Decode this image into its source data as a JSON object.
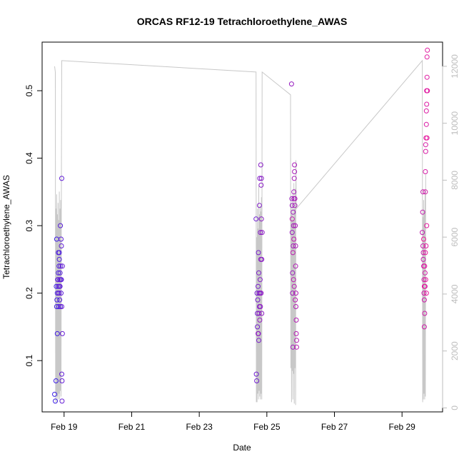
{
  "chart_data": {
    "type": "scatter",
    "title": "ORCAS RF12-19 Tetrachloroethylene_AWAS",
    "xlabel": "Date",
    "ylabel": "Tetrachloroethylene_AWAS",
    "x_ticks": [
      {
        "day": 19,
        "label": "Feb 19"
      },
      {
        "day": 21,
        "label": "Feb 21"
      },
      {
        "day": 23,
        "label": "Feb 23"
      },
      {
        "day": 25,
        "label": "Feb 25"
      },
      {
        "day": 27,
        "label": "Feb 27"
      },
      {
        "day": 29,
        "label": "Feb 29"
      }
    ],
    "xlim": [
      18.35,
      30.2
    ],
    "ylim": [
      0.024,
      0.572
    ],
    "y_ticks": [
      "0.1",
      "0.2",
      "0.3",
      "0.4",
      "0.5"
    ],
    "y2lim": [
      -140,
      12850
    ],
    "y2_ticks": [
      "0",
      "2000",
      "4000",
      "6000",
      "8000",
      "10000",
      "12000"
    ],
    "grid": false,
    "colors": {
      "start": "#3a1ee6",
      "end": "#ee1a9a",
      "altitude": "#c8c8c8"
    },
    "series": [
      {
        "points": [
          [
            18.72,
            0.05
          ],
          [
            18.74,
            0.04
          ],
          [
            18.76,
            0.07
          ],
          [
            18.78,
            0.28
          ],
          [
            18.77,
            0.21
          ],
          [
            18.78,
            0.18
          ],
          [
            18.79,
            0.19
          ],
          [
            18.8,
            0.2
          ],
          [
            18.8,
            0.14
          ],
          [
            18.81,
            0.22
          ],
          [
            18.82,
            0.21
          ],
          [
            18.83,
            0.23
          ],
          [
            18.83,
            0.26
          ],
          [
            18.84,
            0.18
          ],
          [
            18.85,
            0.2
          ],
          [
            18.85,
            0.24
          ],
          [
            18.86,
            0.25
          ],
          [
            18.86,
            0.26
          ],
          [
            18.87,
            0.19
          ],
          [
            18.87,
            0.22
          ],
          [
            18.88,
            0.21
          ],
          [
            18.88,
            0.23
          ],
          [
            18.89,
            0.18
          ],
          [
            18.89,
            0.3
          ],
          [
            18.9,
            0.22
          ],
          [
            18.9,
            0.24
          ],
          [
            18.91,
            0.28
          ],
          [
            18.91,
            0.2
          ],
          [
            18.92,
            0.22
          ],
          [
            18.92,
            0.27
          ],
          [
            18.93,
            0.37
          ],
          [
            18.93,
            0.08
          ],
          [
            18.94,
            0.07
          ],
          [
            18.94,
            0.04
          ],
          [
            18.95,
            0.14
          ],
          [
            18.95,
            0.24
          ],
          [
            18.93,
            0.18
          ],
          [
            18.86,
            0.21
          ],
          [
            18.84,
            0.2
          ],
          [
            18.82,
            0.22
          ],
          [
            24.68,
            0.31
          ],
          [
            24.69,
            0.08
          ],
          [
            24.7,
            0.07
          ],
          [
            24.71,
            0.2
          ],
          [
            24.72,
            0.17
          ],
          [
            24.72,
            0.15
          ],
          [
            24.73,
            0.19
          ],
          [
            24.74,
            0.21
          ],
          [
            24.75,
            0.26
          ],
          [
            24.75,
            0.14
          ],
          [
            24.76,
            0.13
          ],
          [
            24.76,
            0.23
          ],
          [
            24.77,
            0.2
          ],
          [
            24.78,
            0.18
          ],
          [
            24.78,
            0.33
          ],
          [
            24.79,
            0.37
          ],
          [
            24.8,
            0.22
          ],
          [
            24.8,
            0.2
          ],
          [
            24.81,
            0.29
          ],
          [
            24.82,
            0.25
          ],
          [
            24.82,
            0.39
          ],
          [
            24.83,
            0.36
          ],
          [
            24.84,
            0.37
          ],
          [
            24.84,
            0.31
          ],
          [
            24.85,
            0.25
          ],
          [
            24.85,
            0.17
          ],
          [
            24.86,
            0.29
          ],
          [
            24.77,
            0.17
          ],
          [
            24.79,
            0.16
          ],
          [
            24.81,
            0.18
          ],
          [
            24.83,
            0.2
          ],
          [
            24.74,
            0.14
          ],
          [
            25.73,
            0.51
          ],
          [
            25.74,
            0.34
          ],
          [
            25.75,
            0.33
          ],
          [
            25.75,
            0.29
          ],
          [
            25.76,
            0.23
          ],
          [
            25.76,
            0.2
          ],
          [
            25.77,
            0.12
          ],
          [
            25.78,
            0.32
          ],
          [
            25.78,
            0.27
          ],
          [
            25.79,
            0.3
          ],
          [
            25.8,
            0.35
          ],
          [
            25.8,
            0.34
          ],
          [
            25.81,
            0.37
          ],
          [
            25.82,
            0.39
          ],
          [
            25.82,
            0.38
          ],
          [
            25.83,
            0.34
          ],
          [
            25.83,
            0.33
          ],
          [
            25.84,
            0.3
          ],
          [
            25.85,
            0.27
          ],
          [
            25.85,
            0.24
          ],
          [
            25.86,
            0.2
          ],
          [
            25.86,
            0.18
          ],
          [
            25.87,
            0.16
          ],
          [
            25.87,
            0.14
          ],
          [
            25.88,
            0.13
          ],
          [
            25.88,
            0.12
          ],
          [
            25.84,
            0.19
          ],
          [
            25.81,
            0.21
          ],
          [
            25.79,
            0.22
          ],
          [
            25.77,
            0.26
          ],
          [
            25.75,
            0.31
          ],
          [
            25.8,
            0.28
          ],
          [
            29.6,
            0.29
          ],
          [
            29.61,
            0.32
          ],
          [
            29.62,
            0.35
          ],
          [
            29.62,
            0.27
          ],
          [
            29.63,
            0.26
          ],
          [
            29.63,
            0.25
          ],
          [
            29.64,
            0.24
          ],
          [
            29.65,
            0.22
          ],
          [
            29.65,
            0.2
          ],
          [
            29.66,
            0.19
          ],
          [
            29.66,
            0.15
          ],
          [
            29.67,
            0.17
          ],
          [
            29.68,
            0.21
          ],
          [
            29.68,
            0.23
          ],
          [
            29.69,
            0.35
          ],
          [
            29.69,
            0.38
          ],
          [
            29.7,
            0.42
          ],
          [
            29.7,
            0.41
          ],
          [
            29.71,
            0.43
          ],
          [
            29.72,
            0.45
          ],
          [
            29.72,
            0.47
          ],
          [
            29.73,
            0.48
          ],
          [
            29.73,
            0.5
          ],
          [
            29.74,
            0.52
          ],
          [
            29.74,
            0.55
          ],
          [
            29.75,
            0.56
          ],
          [
            29.75,
            0.5
          ],
          [
            29.73,
            0.3
          ],
          [
            29.71,
            0.27
          ],
          [
            29.69,
            0.26
          ],
          [
            29.67,
            0.24
          ],
          [
            29.7,
            0.22
          ],
          [
            29.72,
            0.2
          ],
          [
            29.66,
            0.21
          ],
          [
            29.64,
            0.28
          ],
          [
            29.74,
            0.43
          ]
        ]
      },
      {
        "axis": "right",
        "style": "line",
        "points": [
          [
            18.72,
            12000
          ],
          [
            18.74,
            11800
          ],
          [
            18.75,
            200
          ],
          [
            18.76,
            7000
          ],
          [
            18.77,
            500
          ],
          [
            18.78,
            7500
          ],
          [
            18.79,
            200
          ],
          [
            18.8,
            6800
          ],
          [
            18.81,
            400
          ],
          [
            18.82,
            7200
          ],
          [
            18.83,
            300
          ],
          [
            18.84,
            6600
          ],
          [
            18.85,
            500
          ],
          [
            18.86,
            7600
          ],
          [
            18.87,
            300
          ],
          [
            18.88,
            7000
          ],
          [
            18.89,
            600
          ],
          [
            18.9,
            7300
          ],
          [
            18.91,
            400
          ],
          [
            18.92,
            8000
          ],
          [
            18.93,
            12200
          ],
          [
            24.68,
            11800
          ],
          [
            24.69,
            200
          ],
          [
            24.7,
            6000
          ],
          [
            24.71,
            200
          ],
          [
            24.72,
            7000
          ],
          [
            24.73,
            500
          ],
          [
            24.74,
            6300
          ],
          [
            24.75,
            300
          ],
          [
            24.76,
            7800
          ],
          [
            24.77,
            600
          ],
          [
            24.78,
            6800
          ],
          [
            24.79,
            400
          ],
          [
            24.8,
            7100
          ],
          [
            24.81,
            300
          ],
          [
            24.82,
            6900
          ],
          [
            24.83,
            500
          ],
          [
            24.84,
            7400
          ],
          [
            24.85,
            300
          ],
          [
            24.86,
            11800
          ],
          [
            25.7,
            11000
          ],
          [
            25.71,
            1400
          ],
          [
            25.72,
            7200
          ],
          [
            25.73,
            200
          ],
          [
            25.74,
            6800
          ],
          [
            25.75,
            1300
          ],
          [
            25.76,
            7500
          ],
          [
            25.77,
            300
          ],
          [
            25.78,
            6600
          ],
          [
            25.79,
            1200
          ],
          [
            25.8,
            7900
          ],
          [
            25.81,
            150
          ],
          [
            25.82,
            7000
          ],
          [
            25.83,
            1400
          ],
          [
            25.84,
            7700
          ],
          [
            25.85,
            100
          ],
          [
            25.86,
            8700
          ],
          [
            25.87,
            7000
          ],
          [
            29.6,
            12200
          ],
          [
            29.61,
            200
          ],
          [
            29.62,
            6700
          ],
          [
            29.63,
            300
          ],
          [
            29.64,
            7300
          ],
          [
            29.65,
            500
          ],
          [
            29.66,
            6900
          ],
          [
            29.67,
            300
          ],
          [
            29.68,
            7600
          ],
          [
            29.69,
            400
          ],
          [
            29.7,
            8200
          ]
        ]
      }
    ]
  }
}
